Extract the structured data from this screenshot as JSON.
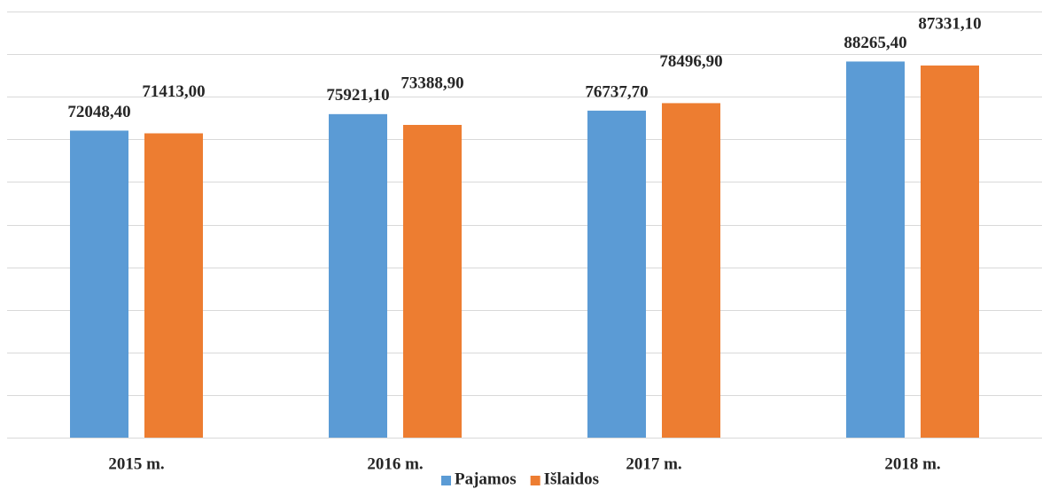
{
  "chart_data": {
    "type": "bar",
    "categories": [
      "2015 m.",
      "2016 m.",
      "2017 m.",
      "2018 m."
    ],
    "series": [
      {
        "name": "Pajamos",
        "color": "#5b9bd5",
        "values": [
          72048.4,
          75921.1,
          76737.7,
          88265.4
        ],
        "value_labels": [
          "72048,40",
          "75921,10",
          "76737,70",
          "88265,40"
        ]
      },
      {
        "name": "Išlaidos",
        "color": "#ed7d31",
        "values": [
          71413.0,
          73388.9,
          78496.9,
          87331.1
        ],
        "value_labels": [
          "71413,00",
          "73388,90",
          "78496,90",
          "87331,10"
        ]
      }
    ],
    "ylim": [
      0,
      100000
    ],
    "yticks": [
      0,
      10000,
      20000,
      30000,
      40000,
      50000,
      60000,
      70000,
      80000,
      90000,
      100000
    ],
    "grid": true,
    "legend": "bottom"
  }
}
